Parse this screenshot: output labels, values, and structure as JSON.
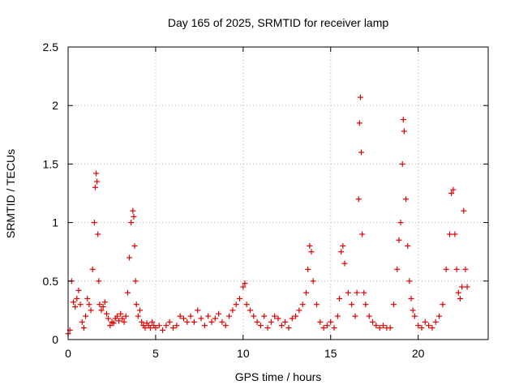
{
  "chart_data": {
    "type": "scatter",
    "title": "Day 165 of 2025, SRMTID for receiver lamp",
    "xlabel": "GPS time / hours",
    "ylabel": "SRMTID / TECUs",
    "xlim": [
      0,
      24
    ],
    "ylim": [
      0,
      2.5
    ],
    "xticks": [
      0,
      5,
      10,
      15,
      20
    ],
    "yticks": [
      0,
      0.5,
      1,
      1.5,
      2,
      2.5
    ],
    "xtick_labels": [
      "0",
      "5",
      "10",
      "15",
      "20"
    ],
    "ytick_labels": [
      "0",
      "0.5",
      "1",
      "1.5",
      "2",
      "2.5"
    ],
    "grid": true,
    "marker": "+",
    "colors": {
      "series": "#e00000",
      "grid": "#b0b0b0",
      "axis": "#000000"
    },
    "series": [
      {
        "name": "SRMTID",
        "x": [
          0.0,
          0.1,
          0.2,
          0.3,
          0.4,
          0.5,
          0.6,
          0.7,
          0.8,
          0.9,
          1.0,
          1.1,
          1.2,
          1.3,
          1.4,
          1.5,
          1.55,
          1.6,
          1.65,
          1.7,
          1.75,
          1.8,
          1.9,
          2.0,
          2.1,
          2.2,
          2.3,
          2.4,
          2.5,
          2.6,
          2.7,
          2.8,
          2.9,
          3.0,
          3.1,
          3.2,
          3.3,
          3.4,
          3.5,
          3.6,
          3.7,
          3.75,
          3.8,
          3.85,
          3.9,
          4.0,
          4.1,
          4.2,
          4.3,
          4.4,
          4.5,
          4.6,
          4.7,
          4.8,
          4.9,
          5.0,
          5.2,
          5.4,
          5.6,
          5.8,
          6.0,
          6.2,
          6.4,
          6.6,
          6.8,
          7.0,
          7.2,
          7.4,
          7.6,
          7.8,
          8.0,
          8.2,
          8.4,
          8.6,
          8.8,
          9.0,
          9.2,
          9.4,
          9.6,
          9.8,
          10.0,
          10.1,
          10.2,
          10.4,
          10.6,
          10.8,
          11.0,
          11.2,
          11.4,
          11.6,
          11.8,
          12.0,
          12.2,
          12.4,
          12.6,
          12.8,
          13.0,
          13.2,
          13.4,
          13.6,
          13.7,
          13.8,
          13.9,
          14.0,
          14.2,
          14.4,
          14.6,
          14.8,
          15.0,
          15.2,
          15.4,
          15.5,
          15.6,
          15.7,
          15.8,
          16.0,
          16.2,
          16.4,
          16.5,
          16.6,
          16.65,
          16.7,
          16.75,
          16.8,
          16.9,
          17.0,
          17.2,
          17.4,
          17.6,
          17.8,
          18.0,
          18.2,
          18.4,
          18.6,
          18.8,
          18.9,
          19.0,
          19.1,
          19.15,
          19.2,
          19.3,
          19.4,
          19.5,
          19.6,
          19.7,
          19.8,
          20.0,
          20.2,
          20.4,
          20.6,
          20.8,
          21.0,
          21.2,
          21.4,
          21.6,
          21.8,
          21.9,
          22.0,
          22.1,
          22.2,
          22.3,
          22.4,
          22.5,
          22.6,
          22.7,
          22.8
        ],
        "y": [
          0.05,
          0.08,
          0.5,
          0.32,
          0.28,
          0.35,
          0.42,
          0.3,
          0.15,
          0.1,
          0.2,
          0.35,
          0.3,
          0.25,
          0.6,
          1.0,
          1.3,
          1.42,
          1.35,
          0.9,
          0.5,
          0.3,
          0.25,
          0.28,
          0.32,
          0.22,
          0.18,
          0.12,
          0.15,
          0.14,
          0.18,
          0.2,
          0.16,
          0.22,
          0.18,
          0.15,
          0.2,
          0.4,
          0.7,
          1.0,
          1.1,
          1.05,
          0.8,
          0.5,
          0.3,
          0.2,
          0.25,
          0.15,
          0.12,
          0.1,
          0.14,
          0.12,
          0.1,
          0.15,
          0.12,
          0.1,
          0.12,
          0.08,
          0.12,
          0.15,
          0.1,
          0.12,
          0.2,
          0.18,
          0.15,
          0.2,
          0.15,
          0.25,
          0.18,
          0.12,
          0.2,
          0.15,
          0.18,
          0.22,
          0.15,
          0.12,
          0.2,
          0.25,
          0.3,
          0.35,
          0.45,
          0.48,
          0.3,
          0.25,
          0.2,
          0.15,
          0.12,
          0.2,
          0.1,
          0.15,
          0.2,
          0.18,
          0.12,
          0.15,
          0.1,
          0.18,
          0.2,
          0.25,
          0.3,
          0.4,
          0.6,
          0.8,
          0.75,
          0.5,
          0.3,
          0.15,
          0.1,
          0.12,
          0.15,
          0.1,
          0.2,
          0.35,
          0.75,
          0.8,
          0.65,
          0.4,
          0.3,
          0.2,
          0.4,
          1.2,
          1.85,
          2.07,
          1.6,
          0.9,
          0.4,
          0.3,
          0.2,
          0.15,
          0.12,
          0.1,
          0.12,
          0.1,
          0.1,
          0.3,
          0.6,
          0.85,
          1.0,
          1.5,
          1.88,
          1.78,
          1.2,
          0.8,
          0.5,
          0.35,
          0.25,
          0.2,
          0.12,
          0.1,
          0.15,
          0.12,
          0.1,
          0.15,
          0.2,
          0.3,
          0.6,
          0.9,
          1.25,
          1.28,
          0.9,
          0.6,
          0.4,
          0.35,
          0.45,
          1.1,
          0.6,
          0.45
        ]
      }
    ]
  }
}
